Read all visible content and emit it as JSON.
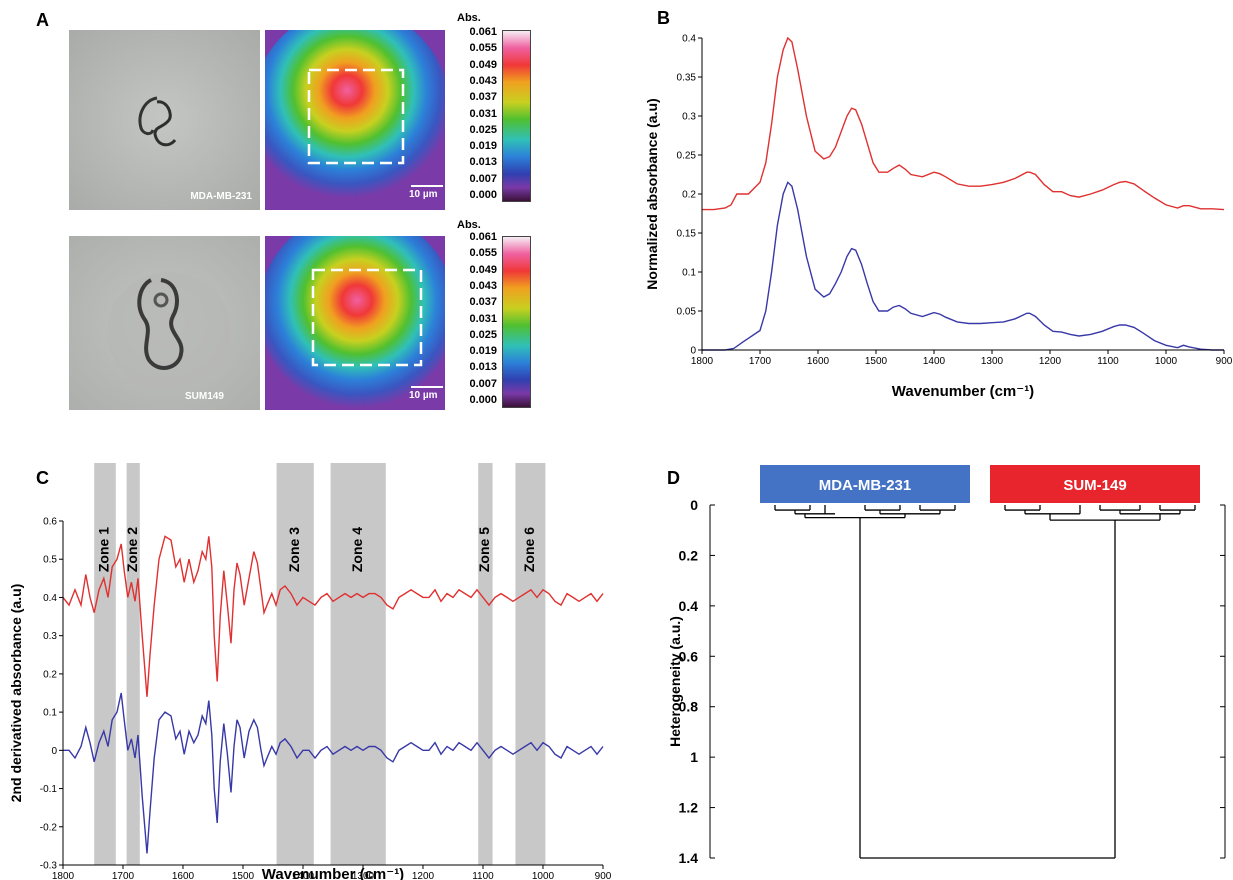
{
  "panels": {
    "a": "A",
    "b": "B",
    "c": "C",
    "d": "D"
  },
  "panel_a": {
    "cells": [
      {
        "name": "MDA-MB-231",
        "scalebar": "10 µm"
      },
      {
        "name": "SUM149",
        "scalebar": "10 µm"
      }
    ],
    "colorbar_title": "Abs.",
    "colorbar_ticks": [
      "0.061",
      "0.055",
      "0.049",
      "0.043",
      "0.037",
      "0.031",
      "0.025",
      "0.019",
      "0.013",
      "0.007",
      "0.000"
    ],
    "colors": [
      "#f6eef4",
      "#f060a0",
      "#f03838",
      "#f0a020",
      "#c8d020",
      "#50c030",
      "#30c0b8",
      "#2c80d8",
      "#3040b0",
      "#7a3aa8",
      "#3a1038"
    ]
  },
  "chart_data": [
    {
      "panel": "B",
      "type": "line",
      "xlabel": "Wavenumber (cm⁻¹)",
      "ylabel": "Normalized absorbance (a.u)",
      "xlim": [
        1800,
        900
      ],
      "ylim": [
        0,
        0.4
      ],
      "xticks": [
        1800,
        1700,
        1600,
        1500,
        1400,
        1300,
        1200,
        1100,
        1000,
        900
      ],
      "yticks": [
        0,
        0.05,
        0.1,
        0.15,
        0.2,
        0.25,
        0.3,
        0.35,
        0.4
      ],
      "ytick_labels": [
        "0",
        "0.05",
        "0.1",
        "0.15",
        "0.2",
        "0.25",
        "0.3",
        "0.35",
        "0.4"
      ],
      "series": [
        {
          "color": "#e03030",
          "x": [
            1800,
            1780,
            1760,
            1750,
            1740,
            1720,
            1700,
            1690,
            1680,
            1670,
            1660,
            1652,
            1645,
            1635,
            1620,
            1605,
            1590,
            1580,
            1570,
            1560,
            1550,
            1542,
            1535,
            1525,
            1515,
            1505,
            1495,
            1480,
            1470,
            1460,
            1450,
            1440,
            1420,
            1400,
            1390,
            1380,
            1360,
            1340,
            1320,
            1300,
            1280,
            1260,
            1240,
            1235,
            1225,
            1210,
            1195,
            1180,
            1165,
            1150,
            1130,
            1110,
            1090,
            1080,
            1070,
            1055,
            1040,
            1020,
            1000,
            980,
            970,
            960,
            940,
            920,
            900
          ],
          "y": [
            0.18,
            0.18,
            0.182,
            0.186,
            0.2,
            0.2,
            0.215,
            0.24,
            0.29,
            0.35,
            0.385,
            0.4,
            0.395,
            0.36,
            0.3,
            0.255,
            0.245,
            0.248,
            0.26,
            0.28,
            0.3,
            0.31,
            0.308,
            0.29,
            0.265,
            0.24,
            0.228,
            0.228,
            0.233,
            0.237,
            0.232,
            0.225,
            0.222,
            0.228,
            0.226,
            0.222,
            0.213,
            0.21,
            0.21,
            0.212,
            0.215,
            0.22,
            0.228,
            0.228,
            0.225,
            0.212,
            0.203,
            0.203,
            0.198,
            0.196,
            0.2,
            0.205,
            0.212,
            0.215,
            0.216,
            0.213,
            0.205,
            0.195,
            0.186,
            0.182,
            0.185,
            0.185,
            0.181,
            0.181,
            0.18
          ]
        },
        {
          "color": "#3838a8",
          "x": [
            1800,
            1780,
            1760,
            1745,
            1730,
            1720,
            1700,
            1690,
            1680,
            1670,
            1660,
            1652,
            1645,
            1635,
            1620,
            1605,
            1590,
            1580,
            1570,
            1560,
            1550,
            1542,
            1535,
            1525,
            1515,
            1505,
            1495,
            1480,
            1470,
            1460,
            1450,
            1440,
            1420,
            1400,
            1390,
            1380,
            1360,
            1340,
            1320,
            1300,
            1280,
            1260,
            1240,
            1235,
            1225,
            1210,
            1195,
            1180,
            1165,
            1150,
            1130,
            1110,
            1090,
            1080,
            1070,
            1055,
            1040,
            1020,
            1000,
            980,
            970,
            960,
            940,
            920,
            900
          ],
          "y": [
            0,
            0,
            0,
            0.002,
            0.01,
            0.015,
            0.025,
            0.05,
            0.1,
            0.16,
            0.2,
            0.215,
            0.21,
            0.18,
            0.12,
            0.078,
            0.068,
            0.072,
            0.085,
            0.1,
            0.12,
            0.13,
            0.128,
            0.11,
            0.085,
            0.062,
            0.05,
            0.05,
            0.055,
            0.057,
            0.053,
            0.047,
            0.043,
            0.048,
            0.046,
            0.042,
            0.036,
            0.034,
            0.034,
            0.035,
            0.036,
            0.04,
            0.047,
            0.047,
            0.043,
            0.032,
            0.024,
            0.023,
            0.02,
            0.018,
            0.02,
            0.024,
            0.03,
            0.032,
            0.032,
            0.029,
            0.022,
            0.012,
            0.006,
            0.003,
            0.006,
            0.004,
            0.001,
            0,
            0
          ]
        }
      ]
    },
    {
      "panel": "C",
      "type": "line",
      "xlabel": "Wavenumber (cm⁻¹)",
      "ylabel": "2nd derivatived absorbance (a.u)",
      "xlim": [
        1800,
        900
      ],
      "ylim": [
        -0.3,
        0.6
      ],
      "xticks": [
        1800,
        1700,
        1600,
        1500,
        1400,
        1300,
        1200,
        1100,
        1000,
        900
      ],
      "yticks": [
        -0.3,
        -0.2,
        -0.1,
        0,
        0.1,
        0.2,
        0.3,
        0.4,
        0.5,
        0.6
      ],
      "ytick_labels": [
        "-0.3",
        "-0.2",
        "-0.1",
        "0",
        "0.1",
        "0.2",
        "0.3",
        "0.4",
        "0.5",
        "0.6"
      ],
      "zones": [
        {
          "label": "Zone 1",
          "from": 1748,
          "to": 1712
        },
        {
          "label": "Zone 2",
          "from": 1694,
          "to": 1672
        },
        {
          "label": "Zone 3",
          "from": 1444,
          "to": 1382
        },
        {
          "label": "Zone 4",
          "from": 1354,
          "to": 1262
        },
        {
          "label": "Zone 5",
          "from": 1108,
          "to": 1084
        },
        {
          "label": "Zone 6",
          "from": 1046,
          "to": 996
        }
      ],
      "series": [
        {
          "color": "#e03030",
          "x": [
            1800,
            1790,
            1780,
            1770,
            1762,
            1755,
            1748,
            1740,
            1732,
            1725,
            1718,
            1710,
            1703,
            1698,
            1692,
            1686,
            1680,
            1675,
            1668,
            1660,
            1655,
            1648,
            1640,
            1630,
            1620,
            1612,
            1605,
            1598,
            1590,
            1582,
            1575,
            1568,
            1562,
            1557,
            1552,
            1548,
            1543,
            1538,
            1532,
            1526,
            1520,
            1515,
            1510,
            1505,
            1498,
            1490,
            1482,
            1476,
            1470,
            1465,
            1460,
            1452,
            1445,
            1438,
            1430,
            1420,
            1410,
            1400,
            1390,
            1380,
            1370,
            1360,
            1350,
            1340,
            1330,
            1320,
            1310,
            1300,
            1290,
            1280,
            1270,
            1260,
            1250,
            1240,
            1230,
            1220,
            1210,
            1200,
            1190,
            1180,
            1170,
            1160,
            1150,
            1140,
            1130,
            1120,
            1110,
            1100,
            1090,
            1080,
            1070,
            1060,
            1050,
            1040,
            1030,
            1020,
            1010,
            1000,
            990,
            980,
            970,
            960,
            950,
            940,
            930,
            920,
            910,
            900
          ],
          "y": [
            0.4,
            0.38,
            0.42,
            0.38,
            0.46,
            0.4,
            0.36,
            0.42,
            0.45,
            0.4,
            0.48,
            0.5,
            0.54,
            0.47,
            0.4,
            0.44,
            0.39,
            0.45,
            0.3,
            0.14,
            0.25,
            0.38,
            0.5,
            0.56,
            0.55,
            0.48,
            0.5,
            0.44,
            0.5,
            0.44,
            0.47,
            0.52,
            0.5,
            0.56,
            0.48,
            0.3,
            0.18,
            0.35,
            0.47,
            0.38,
            0.28,
            0.42,
            0.49,
            0.46,
            0.38,
            0.45,
            0.52,
            0.49,
            0.42,
            0.36,
            0.38,
            0.41,
            0.38,
            0.42,
            0.43,
            0.41,
            0.38,
            0.4,
            0.39,
            0.38,
            0.4,
            0.41,
            0.39,
            0.4,
            0.41,
            0.4,
            0.41,
            0.4,
            0.41,
            0.41,
            0.4,
            0.38,
            0.37,
            0.4,
            0.41,
            0.42,
            0.41,
            0.4,
            0.4,
            0.42,
            0.39,
            0.41,
            0.4,
            0.42,
            0.41,
            0.4,
            0.42,
            0.4,
            0.38,
            0.4,
            0.41,
            0.4,
            0.39,
            0.4,
            0.41,
            0.42,
            0.4,
            0.42,
            0.41,
            0.39,
            0.38,
            0.41,
            0.4,
            0.39,
            0.4,
            0.41,
            0.39,
            0.41
          ]
        },
        {
          "color": "#3838a8",
          "x": [
            1800,
            1790,
            1780,
            1770,
            1762,
            1755,
            1748,
            1740,
            1732,
            1725,
            1718,
            1710,
            1703,
            1698,
            1692,
            1686,
            1680,
            1675,
            1668,
            1660,
            1655,
            1648,
            1640,
            1630,
            1620,
            1612,
            1605,
            1598,
            1590,
            1582,
            1575,
            1568,
            1562,
            1557,
            1552,
            1548,
            1543,
            1538,
            1532,
            1526,
            1520,
            1515,
            1510,
            1505,
            1498,
            1490,
            1482,
            1476,
            1470,
            1465,
            1460,
            1452,
            1445,
            1438,
            1430,
            1420,
            1410,
            1400,
            1390,
            1380,
            1370,
            1360,
            1350,
            1340,
            1330,
            1320,
            1310,
            1300,
            1290,
            1280,
            1270,
            1260,
            1250,
            1240,
            1230,
            1220,
            1210,
            1200,
            1190,
            1180,
            1170,
            1160,
            1150,
            1140,
            1130,
            1120,
            1110,
            1100,
            1090,
            1080,
            1070,
            1060,
            1050,
            1040,
            1030,
            1020,
            1010,
            1000,
            990,
            980,
            970,
            960,
            950,
            940,
            930,
            920,
            910,
            900
          ],
          "y": [
            0,
            0,
            -0.02,
            0.01,
            0.06,
            0.02,
            -0.03,
            0.02,
            0.05,
            0.01,
            0.08,
            0.1,
            0.15,
            0.08,
            0,
            0.03,
            -0.02,
            0.04,
            -0.12,
            -0.27,
            -0.16,
            -0.02,
            0.08,
            0.1,
            0.09,
            0.03,
            0.05,
            -0.01,
            0.05,
            0.02,
            0.04,
            0.09,
            0.07,
            0.13,
            0.04,
            -0.1,
            -0.19,
            -0.03,
            0.07,
            -0.01,
            -0.11,
            0.01,
            0.08,
            0.06,
            -0.02,
            0.05,
            0.08,
            0.06,
            0,
            -0.04,
            -0.02,
            0.01,
            -0.01,
            0.02,
            0.03,
            0.01,
            -0.02,
            0,
            0,
            -0.02,
            0,
            0.01,
            -0.01,
            0,
            0.01,
            0,
            0.01,
            0,
            0.01,
            0.01,
            0,
            -0.02,
            -0.03,
            0,
            0.01,
            0.02,
            0.01,
            0,
            0,
            0.02,
            -0.01,
            0.01,
            0,
            0.02,
            0.01,
            0,
            0.02,
            0,
            -0.02,
            0,
            0.01,
            0,
            -0.01,
            0,
            0.01,
            0.02,
            0,
            0.02,
            0.01,
            -0.01,
            -0.02,
            0.01,
            0,
            -0.01,
            0,
            0.01,
            -0.01,
            0.01
          ]
        }
      ]
    },
    {
      "panel": "D",
      "type": "dendrogram",
      "ylabel": "Heterogeneity (a.u.)",
      "ylim": [
        0,
        1.4
      ],
      "yticks": [
        0,
        0.2,
        0.4,
        0.6,
        0.8,
        1,
        1.2,
        1.4
      ],
      "ytick_labels": [
        "0",
        "0.2",
        "0.4",
        "0.6",
        "0.8",
        "1",
        "1.2",
        "1.4"
      ],
      "groups": [
        {
          "label": "MDA-MB-231",
          "color": "#4472c4"
        },
        {
          "label": "SUM-149",
          "color": "#e8242c"
        }
      ],
      "root_height": 1.4
    }
  ]
}
